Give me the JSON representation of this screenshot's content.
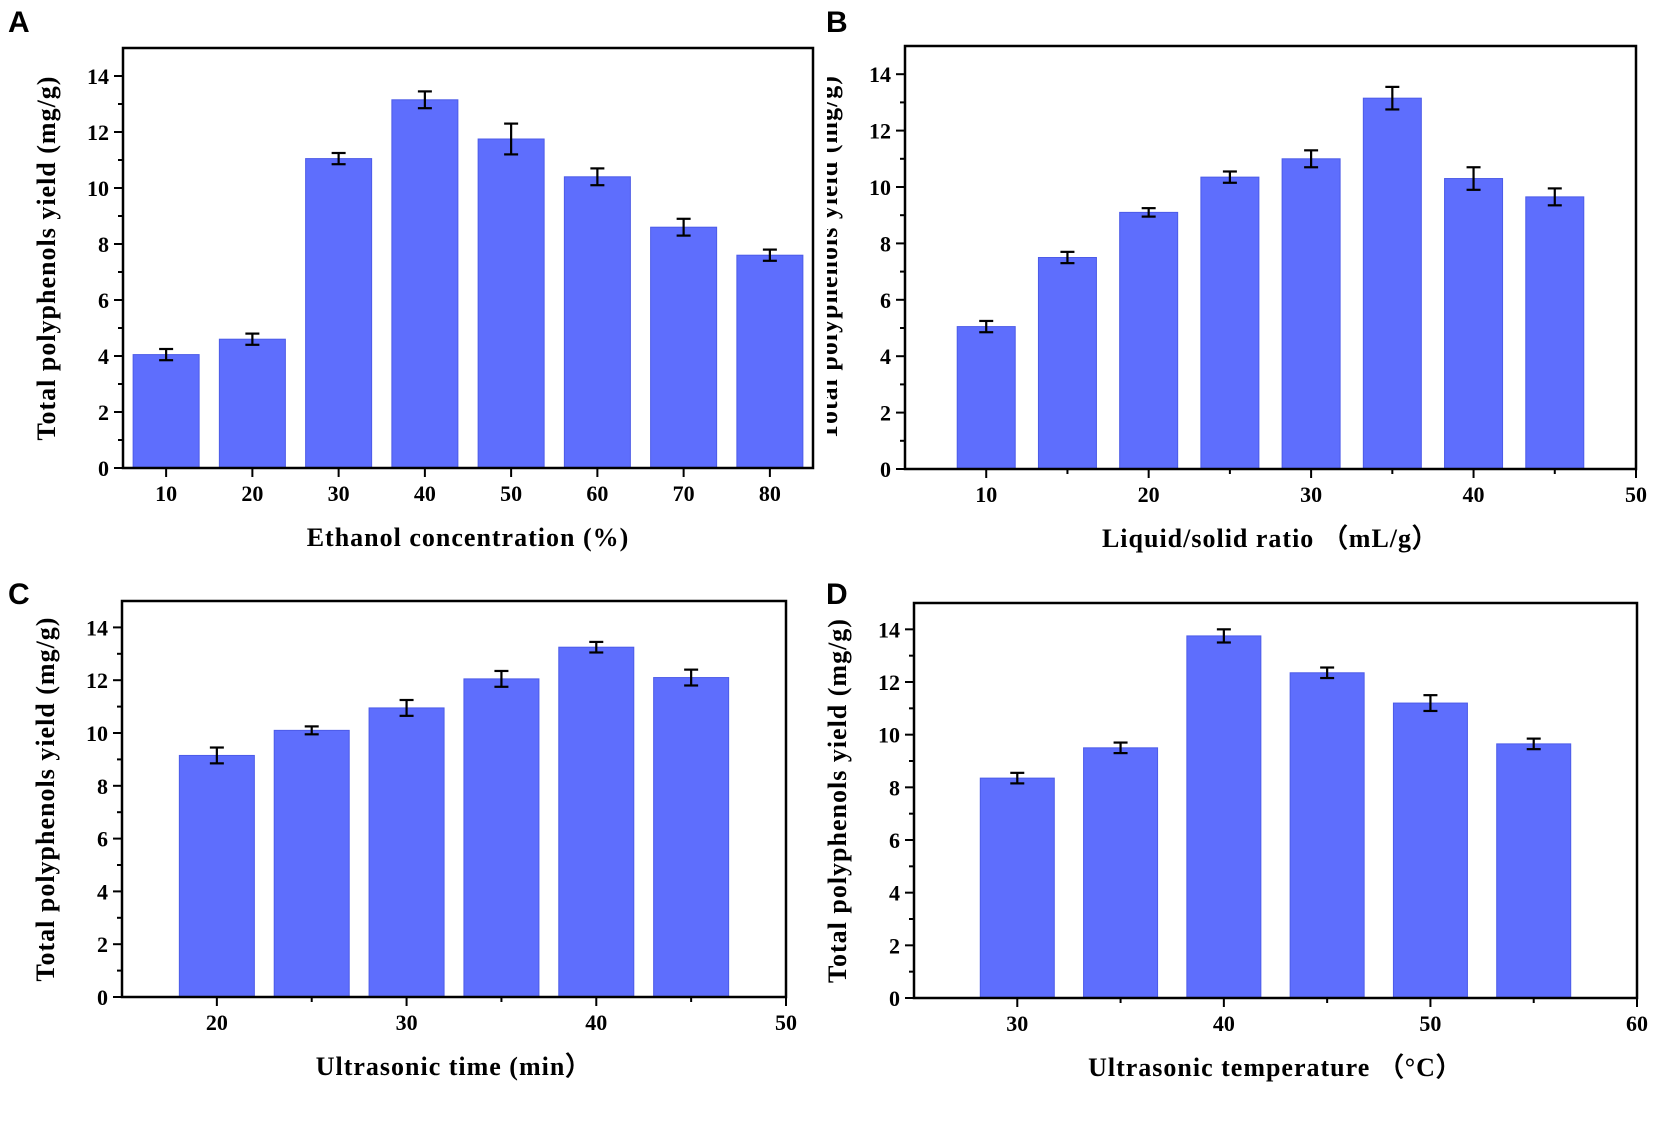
{
  "chart_data": [
    {
      "panel": "A",
      "type": "bar",
      "categorical_x": true,
      "categories": [
        "10",
        "20",
        "30",
        "40",
        "50",
        "60",
        "70",
        "80"
      ],
      "values": [
        4.05,
        4.6,
        11.05,
        13.15,
        11.75,
        10.4,
        8.6,
        7.6
      ],
      "errors": [
        0.2,
        0.2,
        0.2,
        0.3,
        0.55,
        0.3,
        0.3,
        0.2
      ],
      "xlabel": "Ethanol concentration (%)",
      "ylabel": "Total polyphenols yield (mg/g)",
      "ylim": [
        0,
        15
      ],
      "yticks": [
        0,
        2,
        4,
        6,
        8,
        10,
        12,
        14
      ]
    },
    {
      "panel": "B",
      "type": "bar",
      "categorical_x": false,
      "x": [
        10,
        15,
        20,
        25,
        30,
        35,
        40,
        45
      ],
      "values": [
        5.05,
        7.5,
        9.1,
        10.35,
        11.0,
        13.15,
        10.3,
        9.65
      ],
      "errors": [
        0.2,
        0.2,
        0.15,
        0.2,
        0.3,
        0.4,
        0.4,
        0.3
      ],
      "xlim": [
        5,
        50
      ],
      "xticks": [
        "10",
        "20",
        "30",
        "40",
        "50"
      ],
      "xlabel": "Liquid/solid ratio （mL/g）",
      "ylabel": "Total polyphenols yield (mg/g)",
      "ylim": [
        0,
        15
      ],
      "yticks": [
        0,
        2,
        4,
        6,
        8,
        10,
        12,
        14
      ]
    },
    {
      "panel": "C",
      "type": "bar",
      "categorical_x": false,
      "x": [
        20,
        25,
        30,
        35,
        40,
        45
      ],
      "values": [
        9.15,
        10.1,
        10.95,
        12.05,
        13.25,
        12.1
      ],
      "errors": [
        0.3,
        0.15,
        0.3,
        0.3,
        0.2,
        0.3
      ],
      "xlim": [
        15,
        50
      ],
      "xticks": [
        "20",
        "30",
        "40",
        "50"
      ],
      "xlabel": "Ultrasonic time (min）",
      "ylabel": "Total polyphenols yield (mg/g)",
      "ylim": [
        0,
        15
      ],
      "yticks": [
        0,
        2,
        4,
        6,
        8,
        10,
        12,
        14
      ]
    },
    {
      "panel": "D",
      "type": "bar",
      "categorical_x": false,
      "x": [
        30,
        35,
        40,
        45,
        50,
        55
      ],
      "values": [
        8.35,
        9.5,
        13.75,
        12.35,
        11.2,
        9.65
      ],
      "errors": [
        0.2,
        0.2,
        0.25,
        0.2,
        0.3,
        0.2
      ],
      "xlim": [
        25,
        60
      ],
      "xticks": [
        "30",
        "40",
        "50",
        "60"
      ],
      "xlabel": "Ultrasonic temperature （°C）",
      "ylabel": "Total polyphenols yield (mg/g)",
      "ylim": [
        0,
        15
      ],
      "yticks": [
        0,
        2,
        4,
        6,
        8,
        10,
        12,
        14
      ]
    }
  ],
  "colors": {
    "bar": "#5e6efd",
    "axis": "#000000"
  }
}
